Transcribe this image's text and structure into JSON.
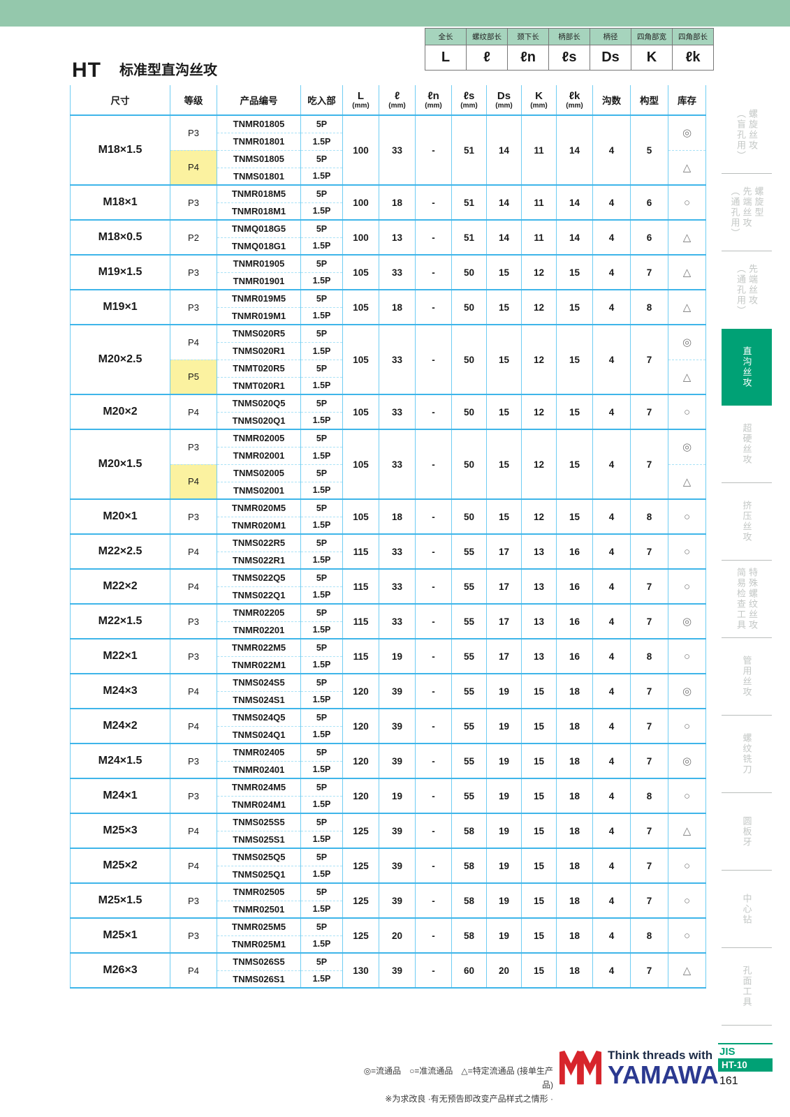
{
  "page": {
    "title_code": "HT",
    "title": "标准型直沟丝攻",
    "standard": "JIS",
    "catalog_code": "HT-10",
    "page_number": "161"
  },
  "colors": {
    "top_bar_green": "#94c8ac",
    "legend_header_green": "#a6d4bd",
    "active_tab_green": "#00a175",
    "table_line_blue": "#3eb5e9",
    "highlight_yellow": "#fbf2a0",
    "brand_red": "#d7252c",
    "brand_blue": "#2b3990"
  },
  "legend_table": {
    "headers": [
      "全长",
      "螺纹部长",
      "颈下长",
      "柄部长",
      "柄径",
      "四角部宽",
      "四角部长"
    ],
    "symbols": [
      "L",
      "ℓ",
      "ℓn",
      "ℓs",
      "Ds",
      "K",
      "ℓk"
    ]
  },
  "table": {
    "columns": [
      {
        "label": "尺寸"
      },
      {
        "label": "等级"
      },
      {
        "label": "产品编号"
      },
      {
        "label": "吃入部"
      },
      {
        "label": "L",
        "unit": "(mm)"
      },
      {
        "label": "ℓ",
        "unit": "(mm)"
      },
      {
        "label": "ℓn",
        "unit": "(mm)"
      },
      {
        "label": "ℓs",
        "unit": "(mm)"
      },
      {
        "label": "Ds",
        "unit": "(mm)"
      },
      {
        "label": "K",
        "unit": "(mm)"
      },
      {
        "label": "ℓk",
        "unit": "(mm)"
      },
      {
        "label": "沟数"
      },
      {
        "label": "构型"
      },
      {
        "label": "库存"
      }
    ],
    "groups": [
      {
        "size": "M18×1.5",
        "dims": {
          "L": "100",
          "l": "33",
          "ln": "-",
          "ls": "51",
          "Ds": "14",
          "K": "11",
          "lk": "14",
          "flutes": "4",
          "type": "5"
        },
        "classes": [
          {
            "grade": "P3",
            "highlight": false,
            "stock": "◎",
            "products": [
              {
                "code": "TNMR01805",
                "chamfer": "5P"
              },
              {
                "code": "TNMR01801",
                "chamfer": "1.5P"
              }
            ]
          },
          {
            "grade": "P4",
            "highlight": true,
            "stock": "△",
            "products": [
              {
                "code": "TNMS01805",
                "chamfer": "5P"
              },
              {
                "code": "TNMS01801",
                "chamfer": "1.5P"
              }
            ]
          }
        ]
      },
      {
        "size": "M18×1",
        "dims": {
          "L": "100",
          "l": "18",
          "ln": "-",
          "ls": "51",
          "Ds": "14",
          "K": "11",
          "lk": "14",
          "flutes": "4",
          "type": "6"
        },
        "classes": [
          {
            "grade": "P3",
            "highlight": false,
            "stock": "○",
            "products": [
              {
                "code": "TNMR018M5",
                "chamfer": "5P"
              },
              {
                "code": "TNMR018M1",
                "chamfer": "1.5P"
              }
            ]
          }
        ]
      },
      {
        "size": "M18×0.5",
        "dims": {
          "L": "100",
          "l": "13",
          "ln": "-",
          "ls": "51",
          "Ds": "14",
          "K": "11",
          "lk": "14",
          "flutes": "4",
          "type": "6"
        },
        "classes": [
          {
            "grade": "P2",
            "highlight": false,
            "stock": "△",
            "products": [
              {
                "code": "TNMQ018G5",
                "chamfer": "5P"
              },
              {
                "code": "TNMQ018G1",
                "chamfer": "1.5P"
              }
            ]
          }
        ]
      },
      {
        "size": "M19×1.5",
        "dims": {
          "L": "105",
          "l": "33",
          "ln": "-",
          "ls": "50",
          "Ds": "15",
          "K": "12",
          "lk": "15",
          "flutes": "4",
          "type": "7"
        },
        "classes": [
          {
            "grade": "P3",
            "highlight": false,
            "stock": "△",
            "products": [
              {
                "code": "TNMR01905",
                "chamfer": "5P"
              },
              {
                "code": "TNMR01901",
                "chamfer": "1.5P"
              }
            ]
          }
        ]
      },
      {
        "size": "M19×1",
        "dims": {
          "L": "105",
          "l": "18",
          "ln": "-",
          "ls": "50",
          "Ds": "15",
          "K": "12",
          "lk": "15",
          "flutes": "4",
          "type": "8"
        },
        "classes": [
          {
            "grade": "P3",
            "highlight": false,
            "stock": "△",
            "products": [
              {
                "code": "TNMR019M5",
                "chamfer": "5P"
              },
              {
                "code": "TNMR019M1",
                "chamfer": "1.5P"
              }
            ]
          }
        ]
      },
      {
        "size": "M20×2.5",
        "dims": {
          "L": "105",
          "l": "33",
          "ln": "-",
          "ls": "50",
          "Ds": "15",
          "K": "12",
          "lk": "15",
          "flutes": "4",
          "type": "7"
        },
        "classes": [
          {
            "grade": "P4",
            "highlight": false,
            "stock": "◎",
            "products": [
              {
                "code": "TNMS020R5",
                "chamfer": "5P"
              },
              {
                "code": "TNMS020R1",
                "chamfer": "1.5P"
              }
            ]
          },
          {
            "grade": "P5",
            "highlight": true,
            "stock": "△",
            "products": [
              {
                "code": "TNMT020R5",
                "chamfer": "5P"
              },
              {
                "code": "TNMT020R1",
                "chamfer": "1.5P"
              }
            ]
          }
        ]
      },
      {
        "size": "M20×2",
        "dims": {
          "L": "105",
          "l": "33",
          "ln": "-",
          "ls": "50",
          "Ds": "15",
          "K": "12",
          "lk": "15",
          "flutes": "4",
          "type": "7"
        },
        "classes": [
          {
            "grade": "P4",
            "highlight": false,
            "stock": "○",
            "products": [
              {
                "code": "TNMS020Q5",
                "chamfer": "5P"
              },
              {
                "code": "TNMS020Q1",
                "chamfer": "1.5P"
              }
            ]
          }
        ]
      },
      {
        "size": "M20×1.5",
        "dims": {
          "L": "105",
          "l": "33",
          "ln": "-",
          "ls": "50",
          "Ds": "15",
          "K": "12",
          "lk": "15",
          "flutes": "4",
          "type": "7"
        },
        "classes": [
          {
            "grade": "P3",
            "highlight": false,
            "stock": "◎",
            "products": [
              {
                "code": "TNMR02005",
                "chamfer": "5P"
              },
              {
                "code": "TNMR02001",
                "chamfer": "1.5P"
              }
            ]
          },
          {
            "grade": "P4",
            "highlight": true,
            "stock": "△",
            "products": [
              {
                "code": "TNMS02005",
                "chamfer": "5P"
              },
              {
                "code": "TNMS02001",
                "chamfer": "1.5P"
              }
            ]
          }
        ]
      },
      {
        "size": "M20×1",
        "dims": {
          "L": "105",
          "l": "18",
          "ln": "-",
          "ls": "50",
          "Ds": "15",
          "K": "12",
          "lk": "15",
          "flutes": "4",
          "type": "8"
        },
        "classes": [
          {
            "grade": "P3",
            "highlight": false,
            "stock": "○",
            "products": [
              {
                "code": "TNMR020M5",
                "chamfer": "5P"
              },
              {
                "code": "TNMR020M1",
                "chamfer": "1.5P"
              }
            ]
          }
        ]
      },
      {
        "size": "M22×2.5",
        "dims": {
          "L": "115",
          "l": "33",
          "ln": "-",
          "ls": "55",
          "Ds": "17",
          "K": "13",
          "lk": "16",
          "flutes": "4",
          "type": "7"
        },
        "classes": [
          {
            "grade": "P4",
            "highlight": false,
            "stock": "○",
            "products": [
              {
                "code": "TNMS022R5",
                "chamfer": "5P"
              },
              {
                "code": "TNMS022R1",
                "chamfer": "1.5P"
              }
            ]
          }
        ]
      },
      {
        "size": "M22×2",
        "dims": {
          "L": "115",
          "l": "33",
          "ln": "-",
          "ls": "55",
          "Ds": "17",
          "K": "13",
          "lk": "16",
          "flutes": "4",
          "type": "7"
        },
        "classes": [
          {
            "grade": "P4",
            "highlight": false,
            "stock": "○",
            "products": [
              {
                "code": "TNMS022Q5",
                "chamfer": "5P"
              },
              {
                "code": "TNMS022Q1",
                "chamfer": "1.5P"
              }
            ]
          }
        ]
      },
      {
        "size": "M22×1.5",
        "dims": {
          "L": "115",
          "l": "33",
          "ln": "-",
          "ls": "55",
          "Ds": "17",
          "K": "13",
          "lk": "16",
          "flutes": "4",
          "type": "7"
        },
        "classes": [
          {
            "grade": "P3",
            "highlight": false,
            "stock": "◎",
            "products": [
              {
                "code": "TNMR02205",
                "chamfer": "5P"
              },
              {
                "code": "TNMR02201",
                "chamfer": "1.5P"
              }
            ]
          }
        ]
      },
      {
        "size": "M22×1",
        "dims": {
          "L": "115",
          "l": "19",
          "ln": "-",
          "ls": "55",
          "Ds": "17",
          "K": "13",
          "lk": "16",
          "flutes": "4",
          "type": "8"
        },
        "classes": [
          {
            "grade": "P3",
            "highlight": false,
            "stock": "○",
            "products": [
              {
                "code": "TNMR022M5",
                "chamfer": "5P"
              },
              {
                "code": "TNMR022M1",
                "chamfer": "1.5P"
              }
            ]
          }
        ]
      },
      {
        "size": "M24×3",
        "dims": {
          "L": "120",
          "l": "39",
          "ln": "-",
          "ls": "55",
          "Ds": "19",
          "K": "15",
          "lk": "18",
          "flutes": "4",
          "type": "7"
        },
        "classes": [
          {
            "grade": "P4",
            "highlight": false,
            "stock": "◎",
            "products": [
              {
                "code": "TNMS024S5",
                "chamfer": "5P"
              },
              {
                "code": "TNMS024S1",
                "chamfer": "1.5P"
              }
            ]
          }
        ]
      },
      {
        "size": "M24×2",
        "dims": {
          "L": "120",
          "l": "39",
          "ln": "-",
          "ls": "55",
          "Ds": "19",
          "K": "15",
          "lk": "18",
          "flutes": "4",
          "type": "7"
        },
        "classes": [
          {
            "grade": "P4",
            "highlight": false,
            "stock": "○",
            "products": [
              {
                "code": "TNMS024Q5",
                "chamfer": "5P"
              },
              {
                "code": "TNMS024Q1",
                "chamfer": "1.5P"
              }
            ]
          }
        ]
      },
      {
        "size": "M24×1.5",
        "dims": {
          "L": "120",
          "l": "39",
          "ln": "-",
          "ls": "55",
          "Ds": "19",
          "K": "15",
          "lk": "18",
          "flutes": "4",
          "type": "7"
        },
        "classes": [
          {
            "grade": "P3",
            "highlight": false,
            "stock": "◎",
            "products": [
              {
                "code": "TNMR02405",
                "chamfer": "5P"
              },
              {
                "code": "TNMR02401",
                "chamfer": "1.5P"
              }
            ]
          }
        ]
      },
      {
        "size": "M24×1",
        "dims": {
          "L": "120",
          "l": "19",
          "ln": "-",
          "ls": "55",
          "Ds": "19",
          "K": "15",
          "lk": "18",
          "flutes": "4",
          "type": "8"
        },
        "classes": [
          {
            "grade": "P3",
            "highlight": false,
            "stock": "○",
            "products": [
              {
                "code": "TNMR024M5",
                "chamfer": "5P"
              },
              {
                "code": "TNMR024M1",
                "chamfer": "1.5P"
              }
            ]
          }
        ]
      },
      {
        "size": "M25×3",
        "dims": {
          "L": "125",
          "l": "39",
          "ln": "-",
          "ls": "58",
          "Ds": "19",
          "K": "15",
          "lk": "18",
          "flutes": "4",
          "type": "7"
        },
        "classes": [
          {
            "grade": "P4",
            "highlight": false,
            "stock": "△",
            "products": [
              {
                "code": "TNMS025S5",
                "chamfer": "5P"
              },
              {
                "code": "TNMS025S1",
                "chamfer": "1.5P"
              }
            ]
          }
        ]
      },
      {
        "size": "M25×2",
        "dims": {
          "L": "125",
          "l": "39",
          "ln": "-",
          "ls": "58",
          "Ds": "19",
          "K": "15",
          "lk": "18",
          "flutes": "4",
          "type": "7"
        },
        "classes": [
          {
            "grade": "P4",
            "highlight": false,
            "stock": "○",
            "products": [
              {
                "code": "TNMS025Q5",
                "chamfer": "5P"
              },
              {
                "code": "TNMS025Q1",
                "chamfer": "1.5P"
              }
            ]
          }
        ]
      },
      {
        "size": "M25×1.5",
        "dims": {
          "L": "125",
          "l": "39",
          "ln": "-",
          "ls": "58",
          "Ds": "19",
          "K": "15",
          "lk": "18",
          "flutes": "4",
          "type": "7"
        },
        "classes": [
          {
            "grade": "P3",
            "highlight": false,
            "stock": "○",
            "products": [
              {
                "code": "TNMR02505",
                "chamfer": "5P"
              },
              {
                "code": "TNMR02501",
                "chamfer": "1.5P"
              }
            ]
          }
        ]
      },
      {
        "size": "M25×1",
        "dims": {
          "L": "125",
          "l": "20",
          "ln": "-",
          "ls": "58",
          "Ds": "19",
          "K": "15",
          "lk": "18",
          "flutes": "4",
          "type": "8"
        },
        "classes": [
          {
            "grade": "P3",
            "highlight": false,
            "stock": "○",
            "products": [
              {
                "code": "TNMR025M5",
                "chamfer": "5P"
              },
              {
                "code": "TNMR025M1",
                "chamfer": "1.5P"
              }
            ]
          }
        ]
      },
      {
        "size": "M26×3",
        "dims": {
          "L": "130",
          "l": "39",
          "ln": "-",
          "ls": "60",
          "Ds": "20",
          "K": "15",
          "lk": "18",
          "flutes": "4",
          "type": "7"
        },
        "classes": [
          {
            "grade": "P4",
            "highlight": false,
            "stock": "△",
            "products": [
              {
                "code": "TNMS026S5",
                "chamfer": "5P"
              },
              {
                "code": "TNMS026S1",
                "chamfer": "1.5P"
              }
            ]
          }
        ]
      }
    ]
  },
  "sidebar": {
    "items": [
      {
        "label": "螺旋丝攻\n（盲孔用）",
        "active": false
      },
      {
        "label": "螺旋型\n先端丝攻\n（通孔用）",
        "active": false
      },
      {
        "label": "先端丝攻\n（通孔用）",
        "active": false
      },
      {
        "label": "直沟丝攻",
        "active": true
      },
      {
        "label": "超硬丝攻",
        "active": false
      },
      {
        "label": "挤压丝攻",
        "active": false
      },
      {
        "label": "特殊螺纹丝攻\n简易检查工具",
        "active": false
      },
      {
        "label": "管用丝攻",
        "active": false
      },
      {
        "label": "螺纹铣刀",
        "active": false
      },
      {
        "label": "圆板牙",
        "active": false
      },
      {
        "label": "中心钻",
        "active": false
      },
      {
        "label": "孔面工具",
        "active": false
      }
    ]
  },
  "footer": {
    "legend": "◎=流通品　○=准流通品　△=特定流通品 (接单生产品)",
    "note": "※为求改良 ·有无预告即改变产品样式之情形 ·",
    "tagline": "Think threads with",
    "brand": "YAMAWA"
  }
}
